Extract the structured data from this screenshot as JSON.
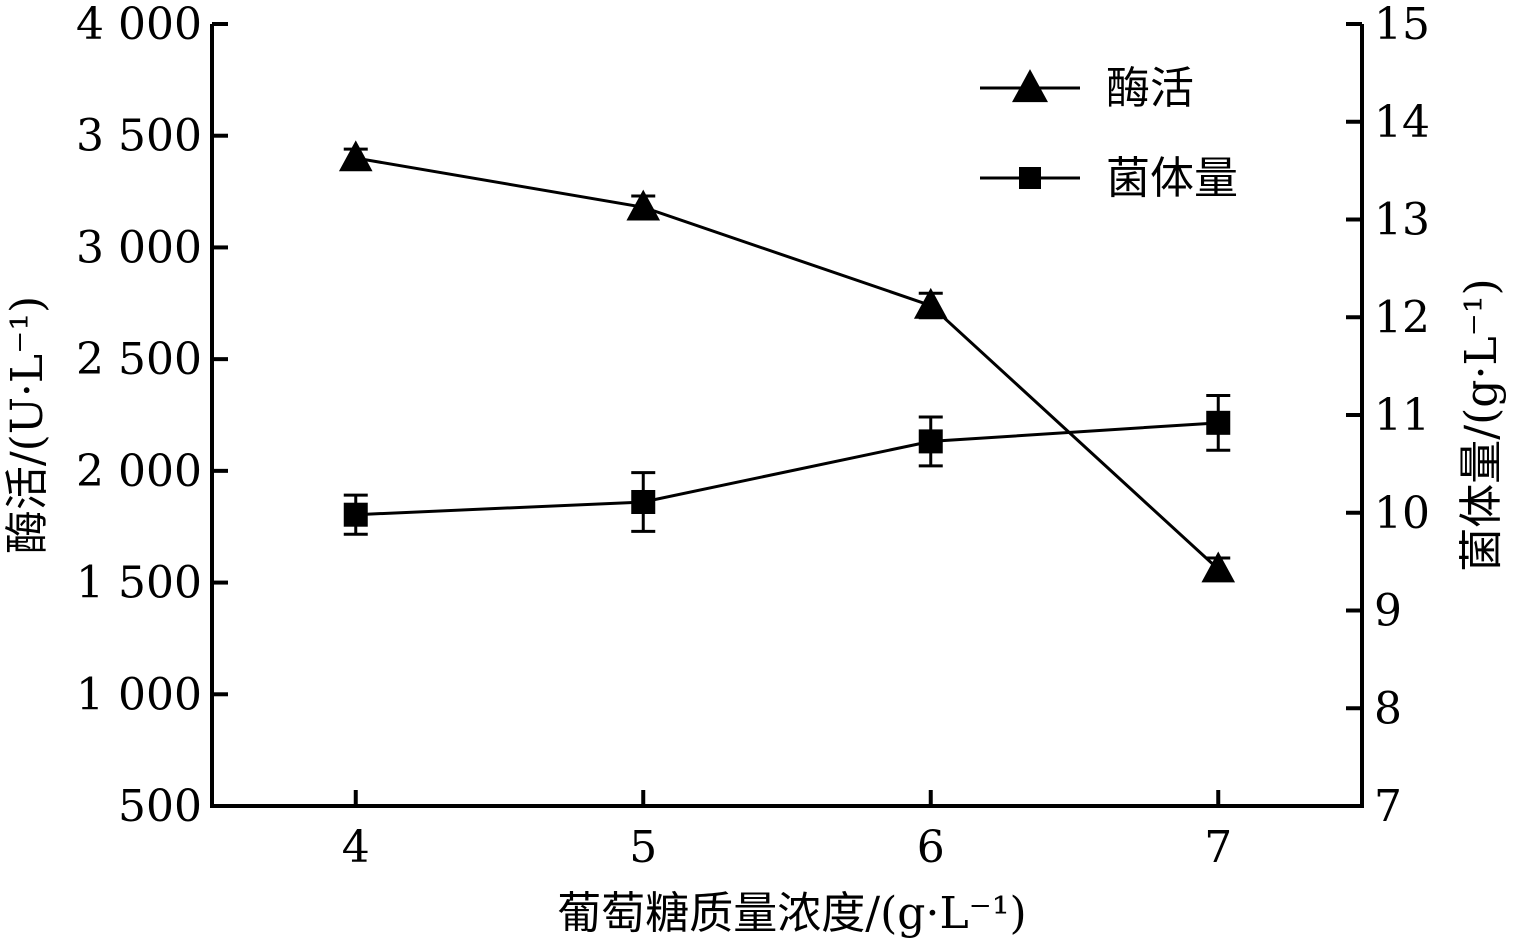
{
  "chart_data": {
    "type": "line",
    "x": [
      4,
      5,
      6,
      7
    ],
    "xlabel": "葡萄糖质量浓度/(g·L⁻¹)",
    "ylabel_left": "酶活/(U·L⁻¹)",
    "ylabel_right": "菌体量/(g·L⁻¹)",
    "xlim": [
      3.5,
      7.5
    ],
    "ylim_left": [
      500,
      4000
    ],
    "ylim_right": [
      7,
      15
    ],
    "x_ticks": [
      4,
      5,
      6,
      7
    ],
    "x_tick_labels": [
      "4",
      "5",
      "6",
      "7"
    ],
    "y_left_ticks": [
      500,
      1000,
      1500,
      2000,
      2500,
      3000,
      3500,
      4000
    ],
    "y_left_tick_labels": [
      "500",
      "1 000",
      "1 500",
      "2 000",
      "2 500",
      "3 000",
      "3 500",
      "4 000"
    ],
    "y_right_ticks": [
      7,
      8,
      9,
      10,
      11,
      12,
      13,
      14,
      15
    ],
    "y_right_tick_labels": [
      "7",
      "8",
      "9",
      "10",
      "11",
      "12",
      "13",
      "14",
      "15"
    ],
    "grid": false,
    "legend_position": "top-right",
    "series": [
      {
        "name": "酶活",
        "axis": "left",
        "marker": "triangle",
        "values": [
          3400,
          3180,
          2740,
          1560
        ],
        "errors": [
          40,
          50,
          55,
          50
        ],
        "color": "#000000"
      },
      {
        "name": "菌体量",
        "axis": "right",
        "marker": "square",
        "values": [
          9.98,
          10.11,
          10.73,
          10.92
        ],
        "errors": [
          0.2,
          0.3,
          0.25,
          0.28
        ],
        "color": "#000000"
      }
    ]
  }
}
